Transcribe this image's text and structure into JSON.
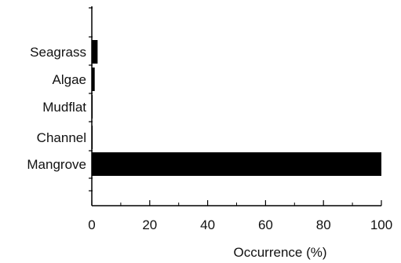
{
  "chart_data": {
    "type": "bar",
    "orientation": "horizontal",
    "categories": [
      "Seagrass",
      "Algae",
      "Mudflat",
      "Channel",
      "Mangrove"
    ],
    "values": [
      2,
      1,
      0.3,
      0.3,
      100
    ],
    "xlabel": "Occurrence (%)",
    "ylabel": "",
    "xlim": [
      0,
      100
    ],
    "xticks": [
      "0",
      "20",
      "40",
      "60",
      "80",
      "100"
    ],
    "grid": false,
    "bar_color": "#000000"
  }
}
